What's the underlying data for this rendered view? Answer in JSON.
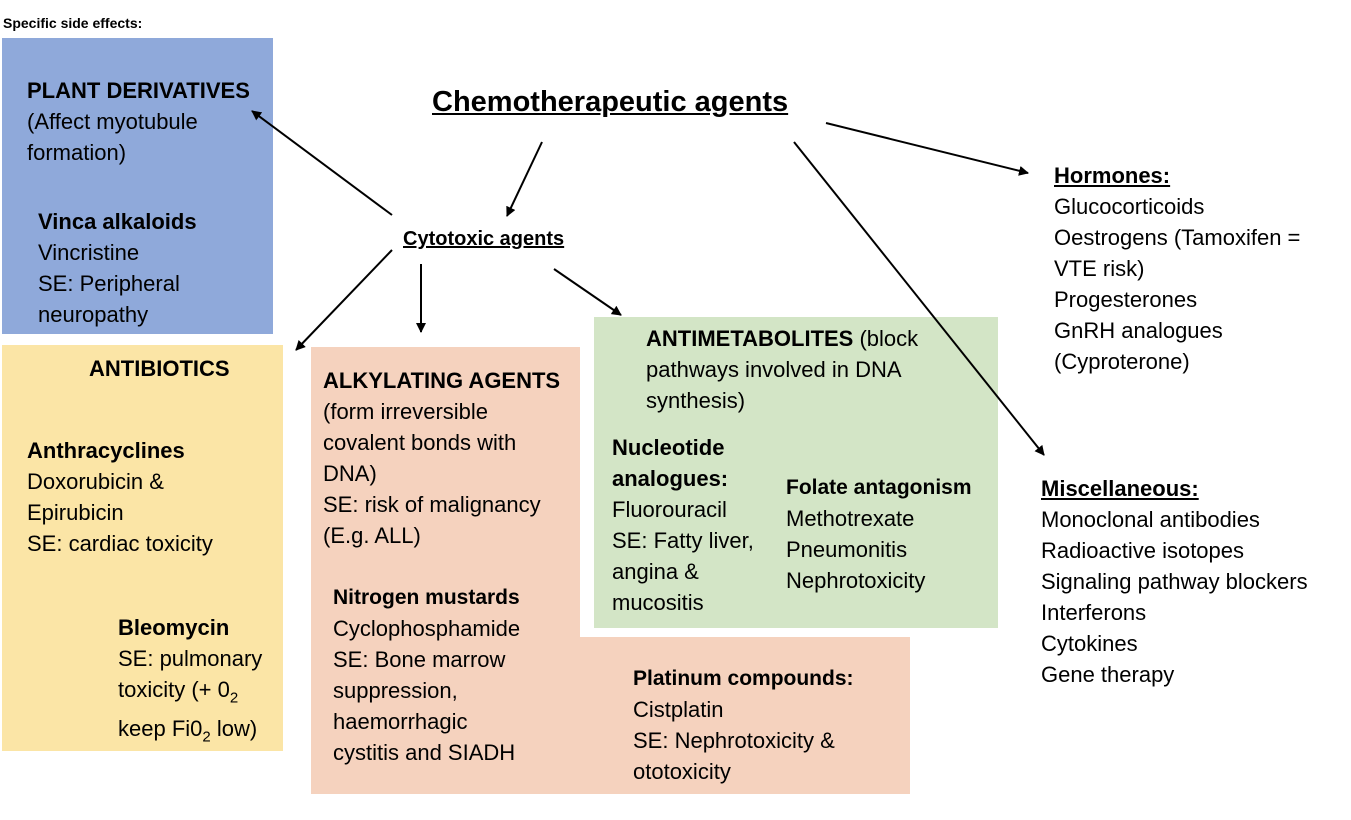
{
  "header_label": "Specific side effects:",
  "main_title": "Chemotherapeutic agents",
  "cytotoxic_label": "Cytotoxic agents",
  "plant": {
    "title": "PLANT DERIVATIVES",
    "desc": [
      "(Affect myotubule",
      "formation)"
    ],
    "sub_title": "Vinca alkaloids",
    "sub_lines": [
      "Vincristine",
      "SE: Peripheral",
      "neuropathy"
    ]
  },
  "antibiotics": {
    "title": "ANTIBIOTICS",
    "anthra_title": "Anthracyclines",
    "anthra_lines": [
      "Doxorubicin &",
      "Epirubicin",
      "SE: cardiac toxicity"
    ],
    "bleo_title": "Bleomycin",
    "bleo_line1": "SE: pulmonary",
    "bleo_line2_a": "toxicity (+ 0",
    "bleo_line2_sub": "2",
    "bleo_line3_a": "keep Fi0",
    "bleo_line3_sub": "2",
    "bleo_line3_b": " low)"
  },
  "alkylating": {
    "title": "ALKYLATING AGENTS",
    "lines": [
      "(form irreversible",
      "covalent bonds with",
      "DNA)",
      "SE: risk of malignancy",
      "(E.g. ALL)"
    ],
    "nitro_title": "Nitrogen mustards",
    "nitro_lines": [
      "Cyclophosphamide",
      "SE: Bone marrow",
      "suppression,",
      "haemorrhagic",
      "cystitis and SIADH"
    ],
    "plat_title": "Platinum compounds:",
    "plat_lines": [
      "Cistplatin",
      "SE: Nephrotoxicity &",
      "ototoxicity"
    ]
  },
  "antimetabolites": {
    "title": "ANTIMETABOLITES",
    "title_rest": " (block",
    "lines": [
      "pathways involved in DNA",
      "synthesis)"
    ],
    "nucleo_title": [
      "Nucleotide",
      "analogues:"
    ],
    "nucleo_lines": [
      "Fluorouracil",
      "SE: Fatty liver,",
      "angina &",
      "mucositis"
    ],
    "folate_title": "Folate antagonism",
    "folate_lines": [
      "Methotrexate",
      "Pneumonitis",
      "Nephrotoxicity"
    ]
  },
  "hormones": {
    "title": "Hormones:",
    "lines": [
      "Glucocorticoids",
      "Oestrogens (Tamoxifen =",
      "VTE risk)",
      "Progesterones",
      "GnRH analogues",
      "(Cyproterone)"
    ]
  },
  "misc": {
    "title": "Miscellaneous:",
    "lines": [
      "Monoclonal antibodies",
      "Radioactive isotopes",
      "Signaling pathway blockers",
      "Interferons",
      "Cytokines",
      "Gene therapy"
    ]
  },
  "colors": {
    "plant_bg": "#8FA9DA",
    "antibiotics_bg": "#FBE5A6",
    "alkylating_bg": "#F5D2BE",
    "antimetabolites_bg": "#D3E5C6"
  }
}
